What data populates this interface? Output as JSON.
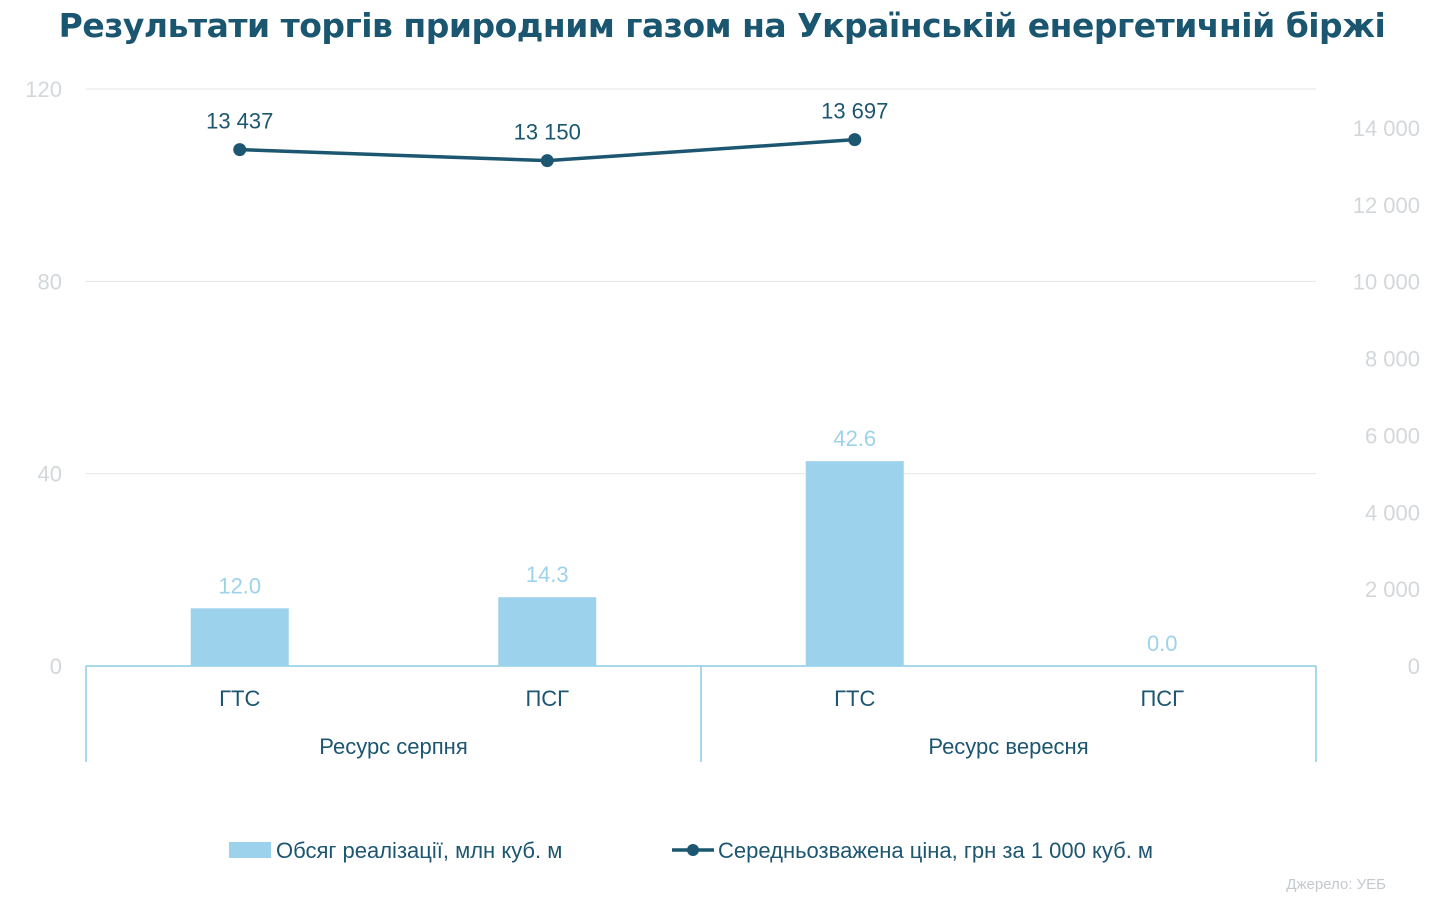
{
  "chart_data": {
    "type": "bar",
    "title": "Результати торгів природним газом на Українській енергетичній біржі",
    "groups": [
      {
        "label": "Ресурс серпня",
        "categories": [
          "ГТС",
          "ПСГ"
        ]
      },
      {
        "label": "Ресурс вересня",
        "categories": [
          "ГТС",
          "ПСГ"
        ]
      }
    ],
    "categories": [
      "ГТС",
      "ПСГ",
      "ГТС",
      "ПСГ"
    ],
    "series": [
      {
        "name": "Обсяг реалізації, млн куб. м",
        "type": "bar",
        "axis": "left",
        "values": [
          12.0,
          14.3,
          42.6,
          0.0
        ],
        "labels": [
          "12.0",
          "14.3",
          "42.6",
          "0.0"
        ],
        "color": "#9dd2ec"
      },
      {
        "name": "Середньозважена ціна, грн за 1 000 куб. м",
        "type": "line",
        "axis": "right",
        "values": [
          13437,
          13150,
          13697,
          null
        ],
        "labels": [
          "13 437",
          "13 150",
          "13 697",
          ""
        ],
        "color": "#1c5670"
      }
    ],
    "y_left": {
      "min": 0,
      "max": 120,
      "ticks": [
        "0",
        "40",
        "80",
        "120"
      ],
      "tick_values": [
        0,
        40,
        80,
        120
      ]
    },
    "y_right": {
      "min": 0,
      "max": 15000,
      "ticks": [
        "0",
        "2 000",
        "4 000",
        "6 000",
        "8 000",
        "10 000",
        "12 000",
        "14 000"
      ],
      "tick_values": [
        0,
        2000,
        4000,
        6000,
        8000,
        10000,
        12000,
        14000
      ]
    },
    "grid": true,
    "legend_position": "bottom"
  },
  "colors": {
    "title": "#1a5670",
    "bar": "#9dd2ec",
    "bar_label": "#9dd2ec",
    "line": "#1c5670",
    "line_label": "#1c5670",
    "tick": "#d3d7da",
    "grid": "#e6e6e6",
    "axis": "#8ccbe6",
    "category_text": "#1c5670"
  },
  "source": "Джерело: УЕБ"
}
